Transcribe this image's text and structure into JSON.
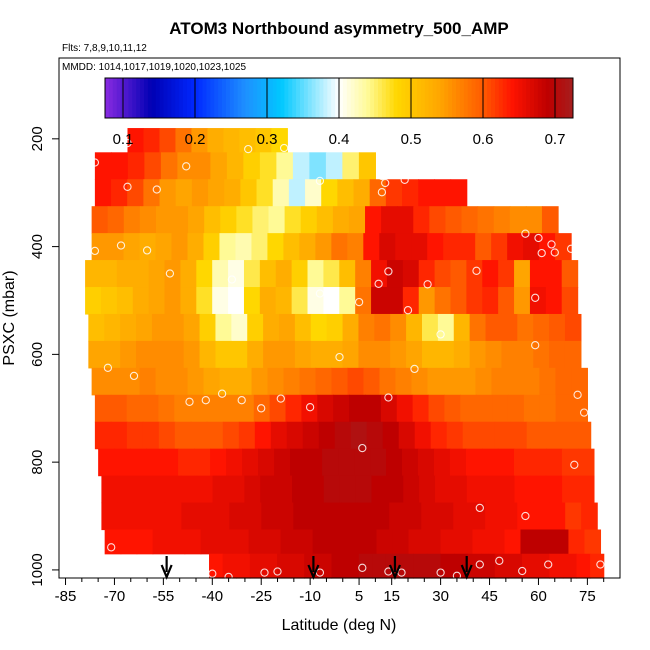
{
  "chart_data": {
    "type": "heatmap",
    "title": "ATOM3 Northbound asymmetry_500_AMP",
    "flights_label": "Flts: 7,8,9,10,11,12",
    "dates_label": "MMDD: 1014,1017,1019,1020,1023,1025",
    "xlabel": "Latitude (deg N)",
    "ylabel": "PSXC (mbar)",
    "xlim": [
      -87,
      85
    ],
    "ylim": [
      1015,
      50
    ],
    "x_ticks": [
      -85,
      -70,
      -55,
      -40,
      -25,
      -10,
      5,
      15,
      30,
      45,
      60,
      75
    ],
    "x_tick_labels": [
      "-85",
      "-70",
      "-55",
      "-40",
      "-25",
      "-10",
      "5",
      "15",
      "30",
      "45",
      "60",
      "75"
    ],
    "y_ticks": [
      200,
      400,
      600,
      800,
      1000
    ],
    "y_tick_labels": [
      "200",
      "400",
      "600",
      "800",
      "1000"
    ],
    "colorbar": {
      "min": 0.075,
      "max": 0.725,
      "ticks": [
        0.1,
        0.2,
        0.3,
        0.4,
        0.5,
        0.6,
        0.7
      ],
      "tick_labels": [
        "0.1",
        "0.2",
        "0.3",
        "0.4",
        "0.5",
        "0.6",
        "0.7"
      ]
    },
    "levels": [
      {
        "p": 200,
        "lat_min": -66,
        "lat_max": -17,
        "values": [
          0.64,
          0.63,
          0.61,
          0.58,
          0.55,
          0.53,
          0.52,
          0.51,
          0.5,
          0.48
        ]
      },
      {
        "p": 250,
        "lat_min": -76,
        "lat_max": 10,
        "values": [
          0.64,
          0.64,
          0.63,
          0.61,
          0.58,
          0.56,
          0.56,
          0.54,
          0.52,
          0.49,
          0.47,
          0.44,
          0.38,
          0.36,
          0.38,
          0.45,
          0.5
        ]
      },
      {
        "p": 300,
        "lat_min": -76,
        "lat_max": 38,
        "values": [
          0.64,
          0.63,
          0.61,
          0.58,
          0.55,
          0.54,
          0.55,
          0.54,
          0.53,
          0.5,
          0.47,
          0.43,
          0.38,
          0.42,
          0.48,
          0.51,
          0.53,
          0.59,
          0.62,
          0.63,
          0.64,
          0.64,
          0.64
        ]
      },
      {
        "p": 350,
        "lat_min": -77,
        "lat_max": 66,
        "values": [
          0.6,
          0.59,
          0.57,
          0.56,
          0.55,
          0.55,
          0.54,
          0.51,
          0.49,
          0.47,
          0.45,
          0.44,
          0.47,
          0.49,
          0.51,
          0.53,
          0.54,
          0.64,
          0.66,
          0.66,
          0.63,
          0.61,
          0.6,
          0.59,
          0.58,
          0.57,
          0.56,
          0.56,
          0.6
        ]
      },
      {
        "p": 400,
        "lat_min": -77,
        "lat_max": 70,
        "values": [
          0.55,
          0.55,
          0.54,
          0.53,
          0.54,
          0.55,
          0.53,
          0.49,
          0.44,
          0.43,
          0.45,
          0.48,
          0.51,
          0.53,
          0.55,
          0.58,
          0.57,
          0.64,
          0.67,
          0.66,
          0.66,
          0.64,
          0.63,
          0.63,
          0.6,
          0.62,
          0.65,
          0.66,
          0.64,
          0.62
        ]
      },
      {
        "p": 450,
        "lat_min": -79,
        "lat_max": 72,
        "values": [
          0.52,
          0.52,
          0.53,
          0.53,
          0.54,
          0.55,
          0.53,
          0.48,
          0.43,
          0.41,
          0.46,
          0.51,
          0.53,
          0.49,
          0.44,
          0.46,
          0.51,
          0.57,
          0.65,
          0.68,
          0.67,
          0.63,
          0.61,
          0.6,
          0.62,
          0.64,
          0.62,
          0.54,
          0.64,
          0.64,
          0.6
        ]
      },
      {
        "p": 500,
        "lat_min": -79,
        "lat_max": 72,
        "values": [
          0.49,
          0.5,
          0.51,
          0.53,
          0.54,
          0.55,
          0.53,
          0.47,
          0.41,
          0.4,
          0.48,
          0.53,
          0.52,
          0.46,
          0.41,
          0.4,
          0.44,
          0.58,
          0.68,
          0.68,
          0.63,
          0.55,
          0.58,
          0.6,
          0.62,
          0.63,
          0.6,
          0.55,
          0.65,
          0.64,
          0.61
        ]
      },
      {
        "p": 550,
        "lat_min": -78,
        "lat_max": 73,
        "values": [
          0.51,
          0.52,
          0.53,
          0.54,
          0.55,
          0.55,
          0.54,
          0.49,
          0.44,
          0.42,
          0.49,
          0.53,
          0.54,
          0.51,
          0.48,
          0.49,
          0.53,
          0.57,
          0.58,
          0.56,
          0.52,
          0.46,
          0.44,
          0.52,
          0.58,
          0.6,
          0.6,
          0.58,
          0.59,
          0.6,
          0.61
        ]
      },
      {
        "p": 600,
        "lat_min": -78,
        "lat_max": 73,
        "values": [
          0.54,
          0.54,
          0.55,
          0.56,
          0.56,
          0.56,
          0.55,
          0.52,
          0.5,
          0.5,
          0.53,
          0.55,
          0.55,
          0.54,
          0.53,
          0.53,
          0.54,
          0.56,
          0.56,
          0.55,
          0.54,
          0.52,
          0.52,
          0.53,
          0.55,
          0.56,
          0.57,
          0.57,
          0.58,
          0.59,
          0.59
        ]
      },
      {
        "p": 650,
        "lat_min": -77,
        "lat_max": 75,
        "values": [
          0.56,
          0.56,
          0.56,
          0.57,
          0.56,
          0.56,
          0.55,
          0.54,
          0.53,
          0.53,
          0.55,
          0.56,
          0.57,
          0.58,
          0.59,
          0.6,
          0.61,
          0.6,
          0.58,
          0.57,
          0.56,
          0.55,
          0.55,
          0.55,
          0.56,
          0.57,
          0.57,
          0.57,
          0.58,
          0.59,
          0.59
        ]
      },
      {
        "p": 700,
        "lat_min": -76,
        "lat_max": 75,
        "values": [
          0.6,
          0.6,
          0.59,
          0.59,
          0.58,
          0.57,
          0.57,
          0.57,
          0.57,
          0.57,
          0.59,
          0.61,
          0.63,
          0.65,
          0.67,
          0.68,
          0.69,
          0.69,
          0.67,
          0.65,
          0.63,
          0.61,
          0.6,
          0.59,
          0.59,
          0.59,
          0.59,
          0.58,
          0.58,
          0.59,
          0.59
        ]
      },
      {
        "p": 750,
        "lat_min": -76,
        "lat_max": 76,
        "values": [
          0.63,
          0.63,
          0.62,
          0.62,
          0.61,
          0.6,
          0.6,
          0.6,
          0.61,
          0.62,
          0.64,
          0.66,
          0.67,
          0.68,
          0.69,
          0.7,
          0.71,
          0.7,
          0.69,
          0.67,
          0.65,
          0.63,
          0.62,
          0.61,
          0.61,
          0.61,
          0.61,
          0.6,
          0.6,
          0.6,
          0.6
        ]
      },
      {
        "p": 800,
        "lat_min": -75,
        "lat_max": 77,
        "values": [
          0.64,
          0.64,
          0.64,
          0.64,
          0.64,
          0.63,
          0.63,
          0.64,
          0.65,
          0.66,
          0.67,
          0.68,
          0.69,
          0.69,
          0.7,
          0.7,
          0.7,
          0.7,
          0.69,
          0.68,
          0.67,
          0.66,
          0.65,
          0.64,
          0.64,
          0.64,
          0.63,
          0.63,
          0.63,
          0.62,
          0.62
        ]
      },
      {
        "p": 850,
        "lat_min": -74,
        "lat_max": 77,
        "values": [
          0.65,
          0.65,
          0.65,
          0.65,
          0.65,
          0.65,
          0.65,
          0.66,
          0.66,
          0.67,
          0.68,
          0.68,
          0.69,
          0.69,
          0.7,
          0.7,
          0.7,
          0.69,
          0.69,
          0.68,
          0.67,
          0.66,
          0.66,
          0.65,
          0.65,
          0.65,
          0.64,
          0.64,
          0.64,
          0.63,
          0.63
        ]
      },
      {
        "p": 900,
        "lat_min": -74,
        "lat_max": 78,
        "values": [
          0.65,
          0.65,
          0.65,
          0.65,
          0.65,
          0.66,
          0.66,
          0.66,
          0.67,
          0.67,
          0.68,
          0.68,
          0.69,
          0.69,
          0.69,
          0.69,
          0.69,
          0.69,
          0.68,
          0.68,
          0.67,
          0.67,
          0.66,
          0.66,
          0.65,
          0.65,
          0.64,
          0.64,
          0.64,
          0.62,
          0.63
        ]
      },
      {
        "p": 950,
        "lat_min": -73,
        "lat_max": 79,
        "values": [
          0.64,
          0.64,
          0.64,
          0.65,
          0.65,
          0.65,
          0.66,
          0.66,
          0.66,
          0.67,
          0.67,
          0.68,
          0.68,
          0.69,
          0.69,
          0.69,
          0.69,
          0.68,
          0.68,
          0.67,
          0.67,
          0.66,
          0.66,
          0.65,
          0.65,
          0.64,
          0.69,
          0.69,
          0.69,
          0.63,
          0.62
        ]
      },
      {
        "p": 990,
        "lat_min": -41,
        "lat_max": 80,
        "values": [
          0.64,
          0.65,
          0.65,
          0.66,
          0.66,
          0.67,
          0.67,
          0.68,
          0.68,
          0.69,
          0.69,
          0.7,
          0.7,
          0.7,
          0.7,
          0.7,
          0.7,
          0.69,
          0.69,
          0.68,
          0.68,
          0.67,
          0.67,
          0.66,
          0.66,
          0.65,
          0.65,
          0.64,
          0.63
        ]
      }
    ],
    "observations": [
      [
        -66,
        208
      ],
      [
        -18,
        217
      ],
      [
        -29,
        219
      ],
      [
        -76,
        244
      ],
      [
        -48,
        251
      ],
      [
        -66,
        289
      ],
      [
        -57,
        294
      ],
      [
        -7,
        278
      ],
      [
        12,
        269
      ],
      [
        13,
        282
      ],
      [
        19,
        276
      ],
      [
        12,
        299
      ],
      [
        -68,
        398
      ],
      [
        -76,
        408
      ],
      [
        -60,
        407
      ],
      [
        -53,
        450
      ],
      [
        -34,
        461
      ],
      [
        56,
        376
      ],
      [
        60,
        384
      ],
      [
        64,
        396
      ],
      [
        65,
        411
      ],
      [
        61,
        412
      ],
      [
        70,
        404
      ],
      [
        -7,
        487
      ],
      [
        11,
        469
      ],
      [
        14,
        446
      ],
      [
        5,
        503
      ],
      [
        20,
        518
      ],
      [
        26,
        470
      ],
      [
        41,
        445
      ],
      [
        30,
        563
      ],
      [
        59,
        495
      ],
      [
        59,
        583
      ],
      [
        -72,
        625
      ],
      [
        -64,
        640
      ],
      [
        -1,
        605
      ],
      [
        22,
        627
      ],
      [
        -37,
        673
      ],
      [
        -47,
        688
      ],
      [
        -42,
        685
      ],
      [
        -31,
        685
      ],
      [
        -25,
        700
      ],
      [
        -19,
        682
      ],
      [
        -10,
        698
      ],
      [
        14,
        680
      ],
      [
        72,
        675
      ],
      [
        6,
        774
      ],
      [
        74,
        708
      ],
      [
        71,
        805
      ],
      [
        42,
        885
      ],
      [
        56,
        900
      ],
      [
        -71,
        958
      ],
      [
        -40,
        1007
      ],
      [
        -35,
        1013
      ],
      [
        -24,
        1005
      ],
      [
        -20,
        1003
      ],
      [
        -7,
        1005
      ],
      [
        6,
        996
      ],
      [
        14,
        1003
      ],
      [
        18,
        1005
      ],
      [
        30,
        1005
      ],
      [
        35,
        1011
      ],
      [
        42,
        990
      ],
      [
        48,
        983
      ],
      [
        55,
        1002
      ],
      [
        63,
        990
      ],
      [
        79,
        990
      ]
    ],
    "arrows": [
      -54,
      -9,
      16,
      38
    ]
  }
}
